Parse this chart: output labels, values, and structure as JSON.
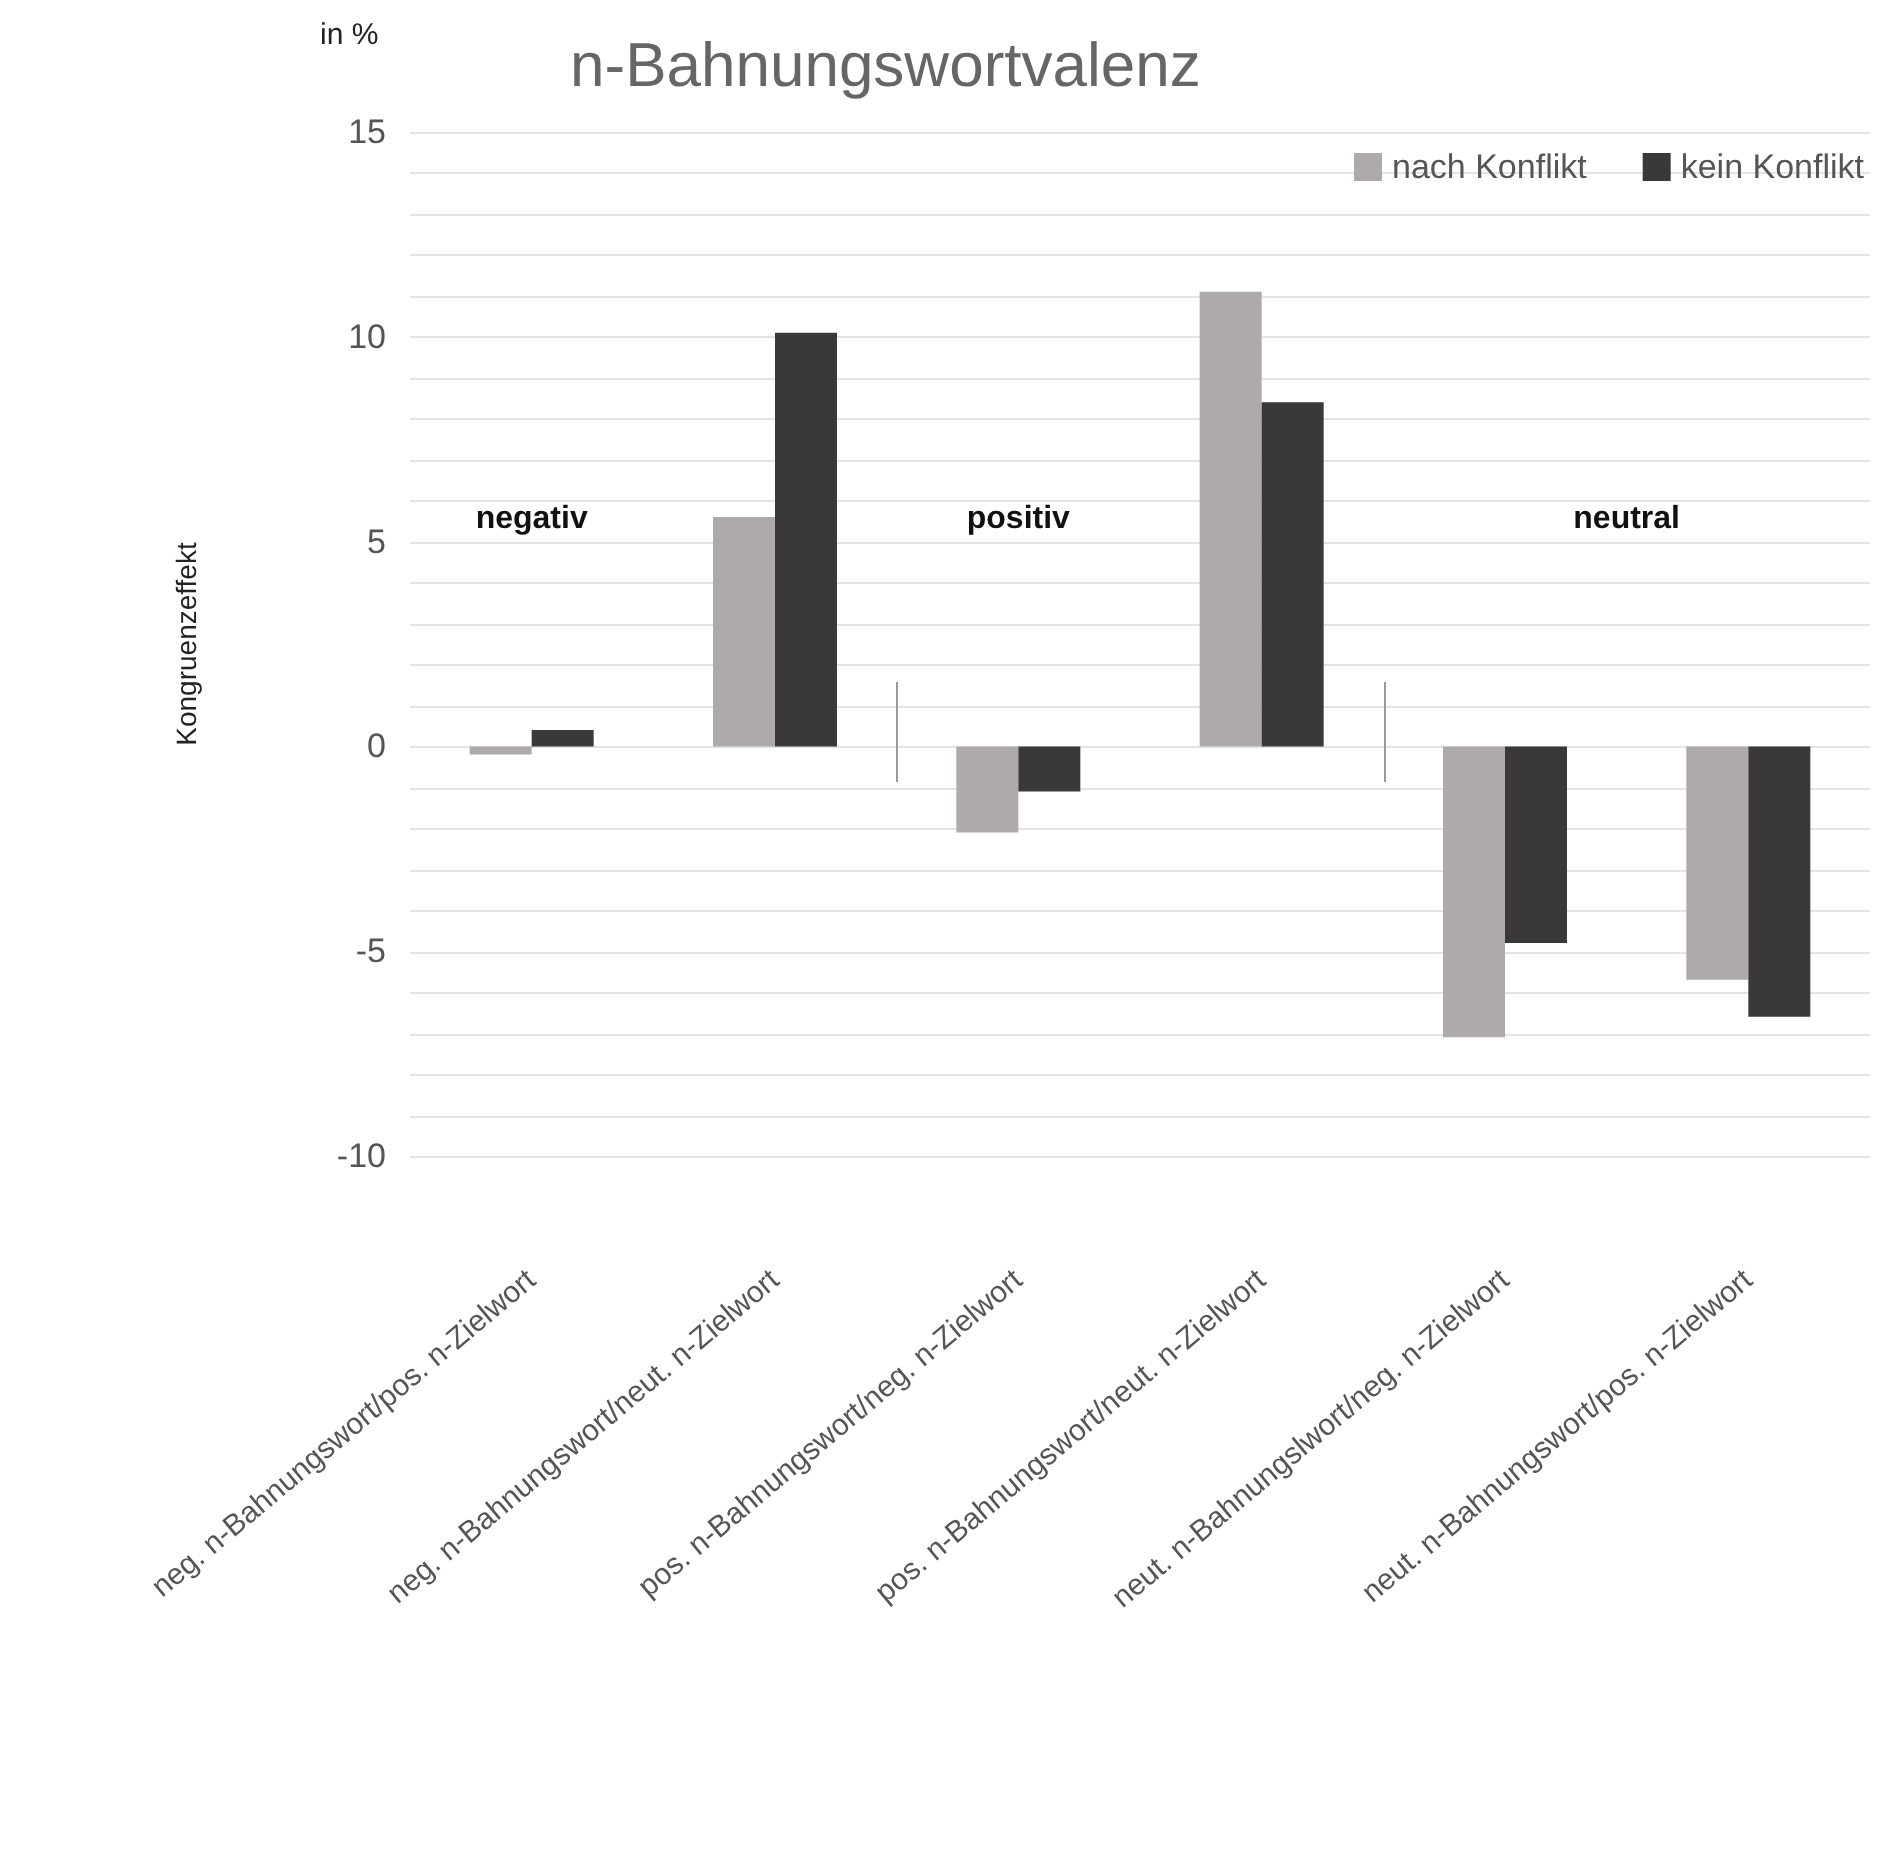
{
  "chart_data": {
    "type": "bar",
    "title": "n-Bahnungswortvalenz",
    "ylabel": "Kongruenzeffekt",
    "annotations": [
      "in %",
      "negativ",
      "positiv",
      "neutral"
    ],
    "categories": [
      "neg. n-Bahnungswort/pos. n-Zielwort",
      "neg. n-Bahnungswort/neut. n-Zielwort",
      "pos. n-Bahnungswort/neg. n-Zielwort",
      "pos. n-Bahnungswort/neut. n-Zielwort",
      "neut. n-Bahnungslwort/neg. n-Zielwort",
      "neut. n-Bahnungswort/pos. n-Zielwort"
    ],
    "series": [
      {
        "name": "nach Konflikt",
        "color": "#aeaaaa",
        "values": [
          -0.2,
          5.6,
          -2.1,
          11.1,
          -7.1,
          -5.7
        ]
      },
      {
        "name": "kein Konflikt",
        "color": "#3b3838",
        "values": [
          0.4,
          10.1,
          -1.1,
          8.4,
          -4.8,
          -6.6
        ]
      }
    ],
    "ylim": [
      -10,
      15
    ],
    "yticks": [
      -10,
      {
        "value": -9,
        "label": null
      },
      {
        "value": -8,
        "label": null
      },
      {
        "value": -7,
        "label": null
      },
      {
        "value": -6,
        "label": null
      },
      -5,
      {
        "value": -4,
        "label": null
      },
      {
        "value": -3,
        "label": null
      },
      {
        "value": -2,
        "label": null
      },
      {
        "value": -1,
        "label": null
      },
      0,
      {
        "value": 1,
        "label": null
      },
      {
        "value": 2,
        "label": null
      },
      {
        "value": 3,
        "label": null
      },
      {
        "value": 4,
        "label": null
      },
      5,
      {
        "value": 6,
        "label": null
      },
      {
        "value": 7,
        "label": null
      },
      {
        "value": 8,
        "label": null
      },
      {
        "value": 9,
        "label": null
      },
      10,
      {
        "value": 11,
        "label": null
      },
      {
        "value": 12,
        "label": null
      },
      {
        "value": 13,
        "label": null
      },
      {
        "value": 14,
        "label": null
      },
      15
    ],
    "grid": "y",
    "legend": "top right"
  }
}
